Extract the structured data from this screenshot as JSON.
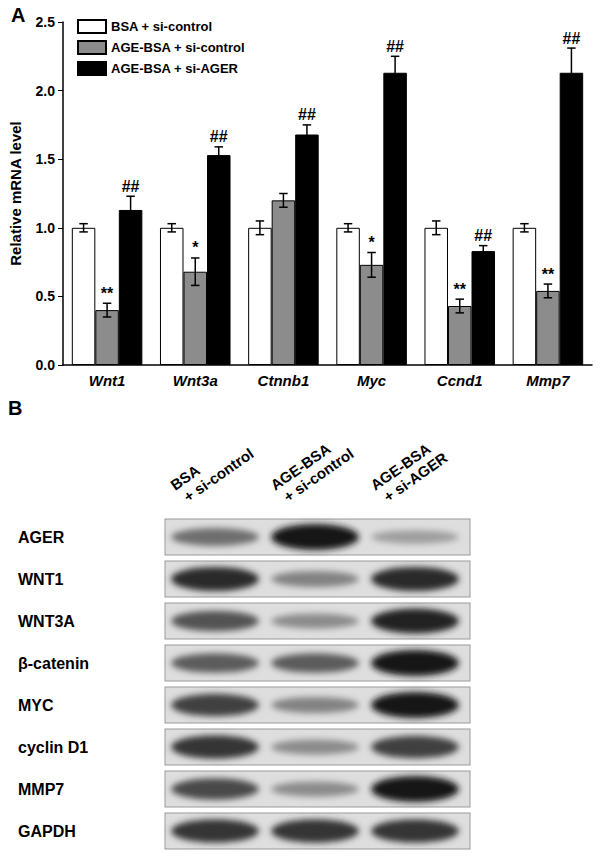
{
  "chart_data": {
    "type": "bar",
    "panel_label": "A",
    "categories": [
      "Wnt1",
      "Wnt3a",
      "Ctnnb1",
      "Myc",
      "Ccnd1",
      "Mmp7"
    ],
    "ylabel": "Relative mRNA level",
    "ylim": [
      0,
      2.5
    ],
    "yticks": [
      {
        "value": 0,
        "label": "0.0"
      },
      {
        "value": 0.5,
        "label": "0.5"
      },
      {
        "value": 1,
        "label": "1.0"
      },
      {
        "value": 1.5,
        "label": "1.5"
      },
      {
        "value": 2,
        "label": "2.0"
      },
      {
        "value": 2.5,
        "label": "2.5"
      }
    ],
    "grid": false,
    "legend": "top-left",
    "series": [
      {
        "name": "BSA + si-control",
        "color": "#ffffff",
        "values": [
          1.0,
          1.0,
          1.0,
          1.0,
          1.0,
          1.0
        ],
        "errors": [
          0.03,
          0.03,
          0.05,
          0.03,
          0.05,
          0.03
        ],
        "annotations": [
          null,
          null,
          null,
          null,
          null,
          null
        ]
      },
      {
        "name": "AGE-BSA + si-control",
        "color": "#8c8c8c",
        "values": [
          0.4,
          0.68,
          1.2,
          0.73,
          0.43,
          0.54
        ],
        "errors": [
          0.05,
          0.1,
          0.05,
          0.09,
          0.05,
          0.05
        ],
        "annotations": [
          "**",
          "*",
          null,
          "*",
          "**",
          "**"
        ]
      },
      {
        "name": "AGE-BSA + si-AGER",
        "color": "#000000",
        "values": [
          1.13,
          1.53,
          1.68,
          2.13,
          0.83,
          2.13
        ],
        "errors": [
          0.1,
          0.06,
          0.07,
          0.12,
          0.04,
          0.18
        ],
        "annotations": [
          "##",
          "##",
          "##",
          "##",
          "##",
          "##"
        ]
      }
    ]
  },
  "blot": {
    "panel_label": "B",
    "lanes": [
      "BSA\n+ si-control",
      "AGE-BSA\n+ si-control",
      "AGE-BSA\n+ si-AGER"
    ],
    "rows": [
      {
        "name": "AGER",
        "intensity": [
          0.55,
          1.0,
          0.3
        ]
      },
      {
        "name": "WNT1",
        "intensity": [
          0.9,
          0.45,
          0.9
        ]
      },
      {
        "name": "WNT3A",
        "intensity": [
          0.7,
          0.4,
          0.95
        ]
      },
      {
        "name": "β-catenin",
        "intensity": [
          0.65,
          0.65,
          1.0
        ]
      },
      {
        "name": "MYC",
        "intensity": [
          0.8,
          0.45,
          1.0
        ]
      },
      {
        "name": "cyclin D1",
        "intensity": [
          0.85,
          0.4,
          0.8
        ]
      },
      {
        "name": "MMP7",
        "intensity": [
          0.75,
          0.4,
          1.0
        ]
      },
      {
        "name": "GAPDH",
        "intensity": [
          0.85,
          0.85,
          0.85
        ]
      }
    ]
  }
}
